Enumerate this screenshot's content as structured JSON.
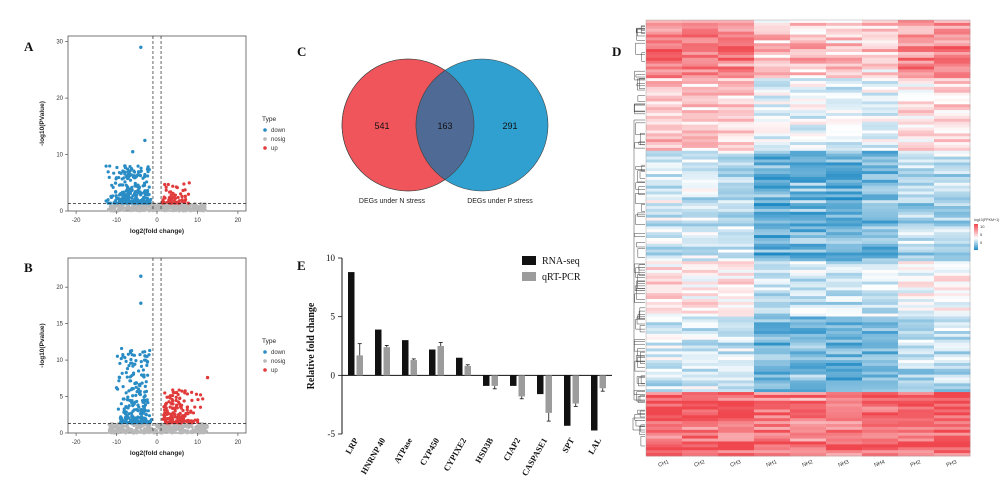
{
  "panel_letters": {
    "a": "A",
    "b": "B",
    "c": "C",
    "d": "D",
    "e": "E"
  },
  "chart_data": [
    {
      "id": "A",
      "type": "scatter",
      "title": "",
      "xlabel": "log2(fold change)",
      "ylabel": "-log10(PValue)",
      "xlim": [
        -22,
        22
      ],
      "ylim": [
        0,
        31
      ],
      "xticks": [
        -20,
        -10,
        0,
        10,
        20
      ],
      "yticks": [
        0,
        10,
        20,
        30
      ],
      "threshold_y": 1.3,
      "threshold_x": [
        -1,
        1
      ],
      "legend": {
        "title": "Type",
        "items": [
          "down",
          "nosig",
          "up"
        ]
      },
      "colors": {
        "down": "#2a8cc4",
        "nosig": "#b8b8b8",
        "up": "#e03a3a"
      },
      "groups": {
        "down": {
          "x_range": [
            -14,
            -1.2
          ],
          "y_range": [
            1.4,
            8
          ],
          "n": 260
        },
        "nosig": {
          "x_range": [
            -12,
            12
          ],
          "y_range": [
            0,
            1.3
          ],
          "n": 340
        },
        "up": {
          "x_range": [
            1.2,
            9
          ],
          "y_range": [
            1.4,
            5
          ],
          "n": 60
        }
      },
      "outliers": {
        "down": [
          [
            -4,
            29
          ],
          [
            -3,
            12.5
          ],
          [
            -6,
            10.5
          ]
        ],
        "up": [
          [
            7,
            2.6
          ]
        ]
      }
    },
    {
      "id": "B",
      "type": "scatter",
      "title": "",
      "xlabel": "log2(fold change)",
      "ylabel": "-log10(Pvalue)",
      "xlim": [
        -22,
        22
      ],
      "ylim": [
        0,
        24
      ],
      "xticks": [
        -20,
        -10,
        0,
        10,
        20
      ],
      "yticks": [
        0,
        5,
        10,
        15,
        20
      ],
      "threshold_y": 1.3,
      "threshold_x": [
        -1,
        1
      ],
      "legend": {
        "title": "Type",
        "items": [
          "down",
          "nosig",
          "up"
        ]
      },
      "colors": {
        "down": "#2a8cc4",
        "nosig": "#b8b8b8",
        "up": "#e03a3a"
      },
      "groups": {
        "down": {
          "x_range": [
            -11,
            -1.2
          ],
          "y_range": [
            1.4,
            12
          ],
          "n": 230
        },
        "nosig": {
          "x_range": [
            -12,
            13
          ],
          "y_range": [
            0,
            1.3
          ],
          "n": 340
        },
        "up": {
          "x_range": [
            1.2,
            12
          ],
          "y_range": [
            1.4,
            6
          ],
          "n": 170
        }
      },
      "outliers": {
        "down": [
          [
            -4,
            21.5
          ],
          [
            -4,
            17.8
          ],
          [
            -10,
            6.2
          ]
        ],
        "up": [
          [
            12.5,
            7.6
          ]
        ]
      }
    },
    {
      "id": "C",
      "type": "venn",
      "sets": [
        {
          "name": "DEGs under N stress",
          "only": 541,
          "color": "#f0555c"
        },
        {
          "name": "DEGs under P stress",
          "only": 291,
          "color": "#2fa0d0"
        }
      ],
      "intersection": 163,
      "intersection_color": "#4f6a94"
    },
    {
      "id": "E",
      "type": "bar",
      "ylabel": "Relative fold change",
      "ylim": [
        -5,
        10
      ],
      "yticks": [
        -5,
        0,
        5,
        10
      ],
      "categories": [
        "LRP",
        "HNRNP 40",
        "ATPase",
        "CYP450",
        "CYPIXE2",
        "HSD3B",
        "CIAP2",
        "CASPASE1",
        "SPT",
        "LAL"
      ],
      "series": [
        {
          "name": "RNA-seq",
          "color": "#111111",
          "values": [
            8.8,
            3.9,
            3.0,
            2.2,
            1.5,
            -0.9,
            -0.9,
            -1.6,
            -4.3,
            -4.7
          ]
        },
        {
          "name": "qRT-PCR",
          "color": "#9c9c9c",
          "values": [
            1.7,
            2.4,
            1.3,
            2.5,
            0.8,
            -0.9,
            -1.8,
            -3.2,
            -2.4,
            -1.1
          ],
          "errors": [
            1.0,
            0.15,
            0.1,
            0.3,
            0.1,
            0.25,
            0.2,
            0.7,
            0.25,
            0.25
          ]
        }
      ]
    },
    {
      "id": "D",
      "type": "heatmap",
      "columns": [
        "CH1",
        "CH2",
        "CH3",
        "NH1",
        "NH2",
        "NH3",
        "NH4",
        "PH2",
        "PH3"
      ],
      "legend_title": "log10(FPKM+1)",
      "legend_ticks": [
        10,
        5,
        0
      ],
      "colors": {
        "high": "#f0464e",
        "mid": "#ffffff",
        "low": "#1f8ac4"
      }
    }
  ]
}
